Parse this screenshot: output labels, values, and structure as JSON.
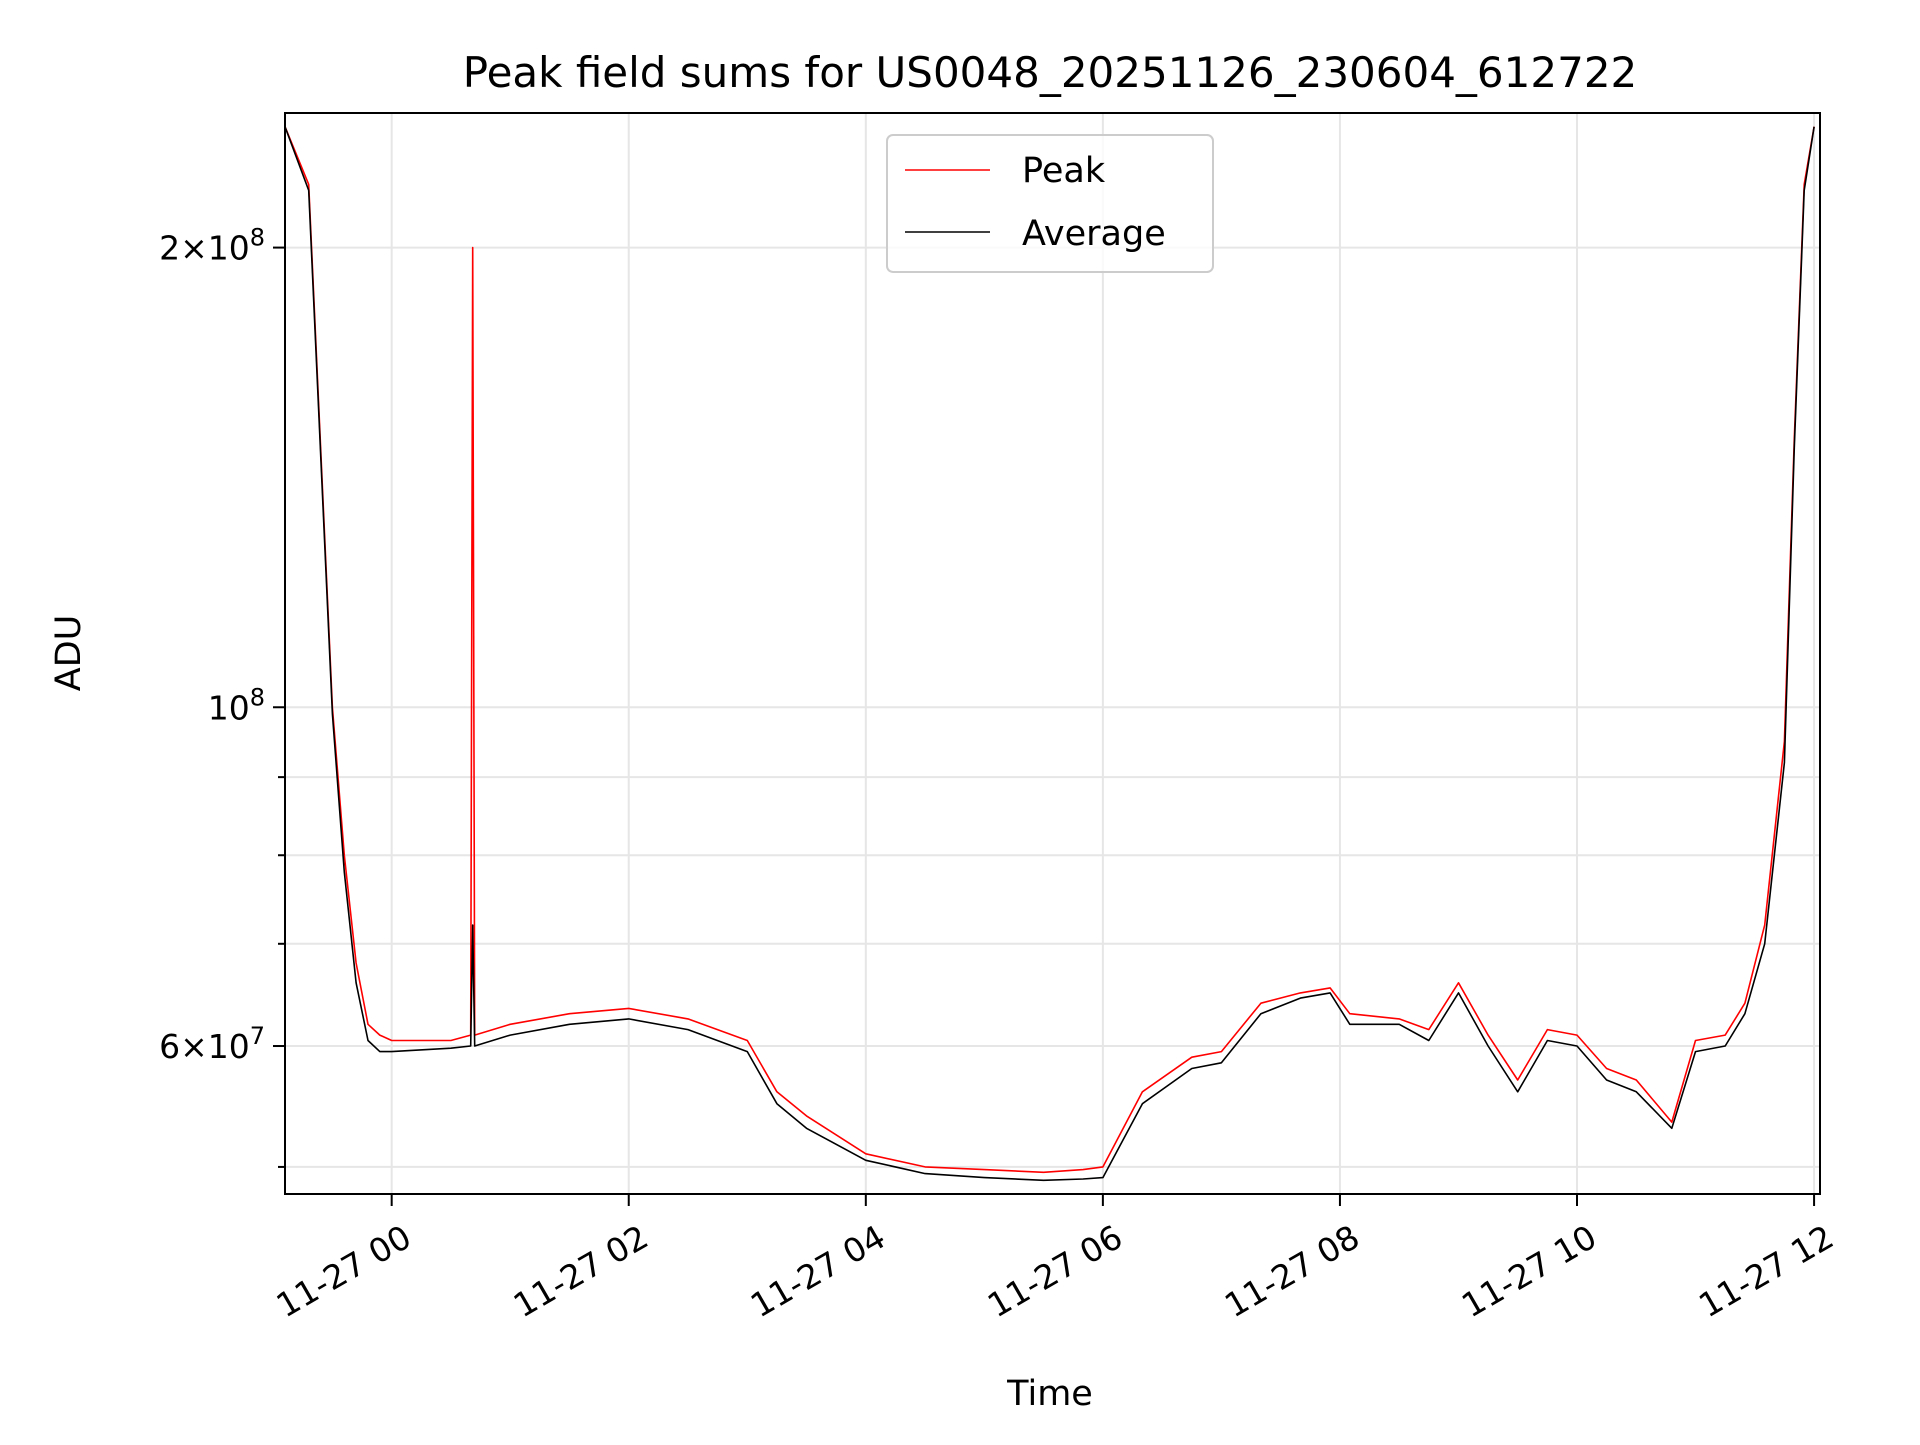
{
  "chart_data": {
    "type": "line",
    "title": "Peak field sums for US0048_20251126_230604_612722",
    "xlabel": "Time",
    "ylabel": "ADU",
    "x_scale": "time",
    "y_scale": "log",
    "xlim": [
      "2025-11-26 23:06",
      "2025-11-27 12:03"
    ],
    "ylim": [
      48000000,
      245000000
    ],
    "grid": true,
    "legend_position": "top-center",
    "x_ticks": [
      {
        "value": "2025-11-27 00:00",
        "label": "11-27 00"
      },
      {
        "value": "2025-11-27 02:00",
        "label": "11-27 02"
      },
      {
        "value": "2025-11-27 04:00",
        "label": "11-27 04"
      },
      {
        "value": "2025-11-27 06:00",
        "label": "11-27 06"
      },
      {
        "value": "2025-11-27 08:00",
        "label": "11-27 08"
      },
      {
        "value": "2025-11-27 10:00",
        "label": "11-27 10"
      },
      {
        "value": "2025-11-27 12:00",
        "label": "11-27 12"
      }
    ],
    "y_major_ticks": [
      {
        "value": 200000000,
        "mantissa": "2",
        "base": "10",
        "exponent": "8"
      },
      {
        "value": 100000000,
        "mantissa": "",
        "base": "10",
        "exponent": "8"
      },
      {
        "value": 60000000,
        "mantissa": "6",
        "base": "10",
        "exponent": "7"
      }
    ],
    "y_minor_ticks": [
      50000000,
      70000000,
      80000000,
      90000000
    ],
    "series": [
      {
        "name": "Peak",
        "color": "#ff0000",
        "x": [
          "2025-11-26 23:06",
          "2025-11-26 23:18",
          "2025-11-26 23:30",
          "2025-11-26 23:36",
          "2025-11-26 23:42",
          "2025-11-26 23:48",
          "2025-11-26 23:54",
          "2025-11-27 00:00",
          "2025-11-27 00:30",
          "2025-11-27 00:40",
          "2025-11-27 00:41",
          "2025-11-27 00:42",
          "2025-11-27 01:00",
          "2025-11-27 01:30",
          "2025-11-27 02:00",
          "2025-11-27 02:30",
          "2025-11-27 03:00",
          "2025-11-27 03:15",
          "2025-11-27 03:30",
          "2025-11-27 04:00",
          "2025-11-27 04:30",
          "2025-11-27 05:00",
          "2025-11-27 05:30",
          "2025-11-27 05:50",
          "2025-11-27 06:00",
          "2025-11-27 06:20",
          "2025-11-27 06:45",
          "2025-11-27 07:00",
          "2025-11-27 07:20",
          "2025-11-27 07:40",
          "2025-11-27 07:55",
          "2025-11-27 08:05",
          "2025-11-27 08:30",
          "2025-11-27 08:45",
          "2025-11-27 09:00",
          "2025-11-27 09:15",
          "2025-11-27 09:30",
          "2025-11-27 09:45",
          "2025-11-27 10:00",
          "2025-11-27 10:15",
          "2025-11-27 10:30",
          "2025-11-27 10:48",
          "2025-11-27 11:00",
          "2025-11-27 11:15",
          "2025-11-27 11:25",
          "2025-11-27 11:35",
          "2025-11-27 11:45",
          "2025-11-27 11:50",
          "2025-11-27 11:55",
          "2025-11-27 12:00"
        ],
        "values": [
          240000000,
          220000000,
          100000000,
          80000000,
          68000000,
          62000000,
          61000000,
          60500000,
          60500000,
          61000000,
          200000000,
          61000000,
          62000000,
          63000000,
          63500000,
          62500000,
          60500000,
          56000000,
          54000000,
          51000000,
          50000000,
          49800000,
          49600000,
          49800000,
          50000000,
          56000000,
          59000000,
          59500000,
          64000000,
          65000000,
          65500000,
          63000000,
          62500000,
          61500000,
          66000000,
          61000000,
          57000000,
          61500000,
          61000000,
          58000000,
          57000000,
          53500000,
          60500000,
          61000000,
          64000000,
          72000000,
          95000000,
          150000000,
          220000000,
          240000000
        ]
      },
      {
        "name": "Average",
        "color": "#000000",
        "x": [
          "2025-11-26 23:06",
          "2025-11-26 23:18",
          "2025-11-26 23:30",
          "2025-11-26 23:36",
          "2025-11-26 23:42",
          "2025-11-26 23:48",
          "2025-11-26 23:54",
          "2025-11-27 00:00",
          "2025-11-27 00:30",
          "2025-11-27 00:40",
          "2025-11-27 00:41",
          "2025-11-27 00:42",
          "2025-11-27 01:00",
          "2025-11-27 01:30",
          "2025-11-27 02:00",
          "2025-11-27 02:30",
          "2025-11-27 03:00",
          "2025-11-27 03:15",
          "2025-11-27 03:30",
          "2025-11-27 04:00",
          "2025-11-27 04:30",
          "2025-11-27 05:00",
          "2025-11-27 05:30",
          "2025-11-27 05:50",
          "2025-11-27 06:00",
          "2025-11-27 06:20",
          "2025-11-27 06:45",
          "2025-11-27 07:00",
          "2025-11-27 07:20",
          "2025-11-27 07:40",
          "2025-11-27 07:55",
          "2025-11-27 08:05",
          "2025-11-27 08:30",
          "2025-11-27 08:45",
          "2025-11-27 09:00",
          "2025-11-27 09:15",
          "2025-11-27 09:30",
          "2025-11-27 09:45",
          "2025-11-27 10:00",
          "2025-11-27 10:15",
          "2025-11-27 10:30",
          "2025-11-27 10:48",
          "2025-11-27 11:00",
          "2025-11-27 11:15",
          "2025-11-27 11:25",
          "2025-11-27 11:35",
          "2025-11-27 11:45",
          "2025-11-27 11:50",
          "2025-11-27 11:55",
          "2025-11-27 12:00"
        ],
        "values": [
          240000000,
          218000000,
          99000000,
          78000000,
          66000000,
          60500000,
          59500000,
          59500000,
          59800000,
          60000000,
          72000000,
          60000000,
          61000000,
          62000000,
          62500000,
          61500000,
          59500000,
          55000000,
          53000000,
          50500000,
          49500000,
          49200000,
          49000000,
          49100000,
          49200000,
          55000000,
          58000000,
          58500000,
          63000000,
          64500000,
          65000000,
          62000000,
          62000000,
          60500000,
          65000000,
          60000000,
          56000000,
          60500000,
          60000000,
          57000000,
          56000000,
          53000000,
          59500000,
          60000000,
          63000000,
          70000000,
          92000000,
          148000000,
          218000000,
          240000000
        ]
      }
    ]
  }
}
